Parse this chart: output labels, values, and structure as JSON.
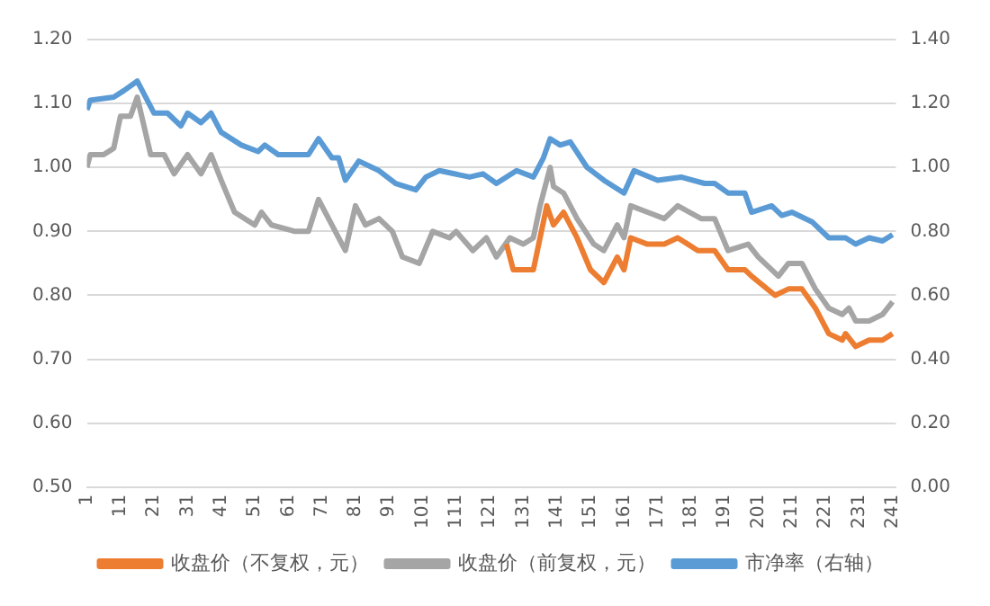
{
  "chart_data": {
    "type": "line",
    "xlim": [
      1,
      242
    ],
    "xticks": [
      1,
      11,
      21,
      31,
      41,
      51,
      61,
      71,
      81,
      91,
      101,
      111,
      121,
      131,
      141,
      151,
      161,
      171,
      181,
      191,
      201,
      211,
      221,
      231,
      241
    ],
    "ylim": [
      0.5,
      1.2
    ],
    "yticks": [
      {
        "value": 0.5,
        "label": "0.50"
      },
      {
        "value": 0.6,
        "label": "0.60"
      },
      {
        "value": 0.7,
        "label": "0.70"
      },
      {
        "value": 0.8,
        "label": "0.80"
      },
      {
        "value": 0.9,
        "label": "0.90"
      },
      {
        "value": 1.0,
        "label": "1.00"
      },
      {
        "value": 1.1,
        "label": "1.10"
      },
      {
        "value": 1.2,
        "label": "1.20"
      }
    ],
    "y2lim": [
      0,
      1.4
    ],
    "y2ticks": [
      {
        "value": 0,
        "label": "0.00"
      },
      {
        "value": 0.2,
        "label": "0.20"
      },
      {
        "value": 0.4,
        "label": "0.40"
      },
      {
        "value": 0.6,
        "label": "0.60"
      },
      {
        "value": 0.8,
        "label": "0.80"
      },
      {
        "value": 1.0,
        "label": "1.00"
      },
      {
        "value": 1.2,
        "label": "1.20"
      },
      {
        "value": 1.4,
        "label": "1.40"
      }
    ],
    "grid": "y",
    "legend": "bottom",
    "marker": "none",
    "line_style": "solid",
    "series": [
      {
        "name": "收盘价（不复权，元）",
        "color": "#ed7d31",
        "x": [
          126,
          128,
          132,
          134,
          136,
          138,
          140,
          143,
          147,
          151,
          155,
          159,
          161,
          163,
          168,
          173,
          177,
          183,
          188,
          192,
          197,
          199,
          206,
          210,
          214,
          218,
          222,
          226,
          227,
          230,
          234,
          238,
          241
        ],
        "values": [
          0.88,
          0.84,
          0.84,
          0.84,
          0.89,
          0.94,
          0.91,
          0.93,
          0.89,
          0.84,
          0.82,
          0.86,
          0.84,
          0.89,
          0.88,
          0.88,
          0.89,
          0.87,
          0.87,
          0.84,
          0.84,
          0.83,
          0.8,
          0.81,
          0.81,
          0.78,
          0.74,
          0.73,
          0.74,
          0.72,
          0.73,
          0.73,
          0.74
        ]
      },
      {
        "name": "收盘价（前复权，元）",
        "color": "#a5a5a5",
        "x": [
          1,
          2,
          6,
          9,
          11,
          14,
          16,
          20,
          24,
          27,
          31,
          35,
          38,
          41,
          45,
          51,
          53,
          56,
          63,
          67,
          70,
          75,
          78,
          81,
          84,
          88,
          92,
          95,
          100,
          104,
          109,
          111,
          116,
          120,
          123,
          127,
          131,
          134,
          136,
          139,
          140,
          143,
          147,
          152,
          155,
          159,
          161,
          163,
          168,
          173,
          177,
          184,
          188,
          192,
          198,
          201,
          207,
          210,
          214,
          218,
          222,
          226,
          228,
          230,
          234,
          238,
          241
        ],
        "values": [
          1.0,
          1.02,
          1.02,
          1.03,
          1.08,
          1.08,
          1.11,
          1.02,
          1.02,
          0.99,
          1.02,
          0.99,
          1.02,
          0.98,
          0.93,
          0.91,
          0.93,
          0.91,
          0.9,
          0.9,
          0.95,
          0.9,
          0.87,
          0.94,
          0.91,
          0.92,
          0.9,
          0.86,
          0.85,
          0.9,
          0.89,
          0.9,
          0.87,
          0.89,
          0.86,
          0.89,
          0.88,
          0.89,
          0.94,
          1.0,
          0.97,
          0.96,
          0.92,
          0.88,
          0.87,
          0.91,
          0.89,
          0.94,
          0.93,
          0.92,
          0.94,
          0.92,
          0.92,
          0.87,
          0.88,
          0.86,
          0.83,
          0.85,
          0.85,
          0.81,
          0.78,
          0.77,
          0.78,
          0.76,
          0.76,
          0.77,
          0.79
        ]
      },
      {
        "name": "市净率（右轴）",
        "color": "#5b9bd5",
        "axis": "y2",
        "x": [
          1,
          2,
          9,
          12,
          16,
          18,
          21,
          25,
          29,
          31,
          35,
          38,
          41,
          47,
          52,
          54,
          58,
          67,
          70,
          74,
          76,
          78,
          82,
          88,
          93,
          99,
          102,
          106,
          115,
          119,
          123,
          129,
          134,
          137,
          139,
          142,
          145,
          150,
          155,
          161,
          164,
          171,
          178,
          185,
          188,
          192,
          197,
          199,
          205,
          208,
          211,
          217,
          222,
          227,
          230,
          234,
          238,
          241
        ],
        "values": [
          1.18,
          1.21,
          1.22,
          1.24,
          1.27,
          1.23,
          1.17,
          1.17,
          1.13,
          1.17,
          1.14,
          1.17,
          1.11,
          1.07,
          1.05,
          1.07,
          1.04,
          1.04,
          1.09,
          1.03,
          1.03,
          0.96,
          1.02,
          0.99,
          0.95,
          0.93,
          0.97,
          0.99,
          0.97,
          0.98,
          0.95,
          0.99,
          0.97,
          1.03,
          1.09,
          1.07,
          1.08,
          1.0,
          0.96,
          0.92,
          0.99,
          0.96,
          0.97,
          0.95,
          0.95,
          0.92,
          0.92,
          0.86,
          0.88,
          0.85,
          0.86,
          0.83,
          0.78,
          0.78,
          0.76,
          0.78,
          0.77,
          0.79
        ]
      }
    ]
  }
}
